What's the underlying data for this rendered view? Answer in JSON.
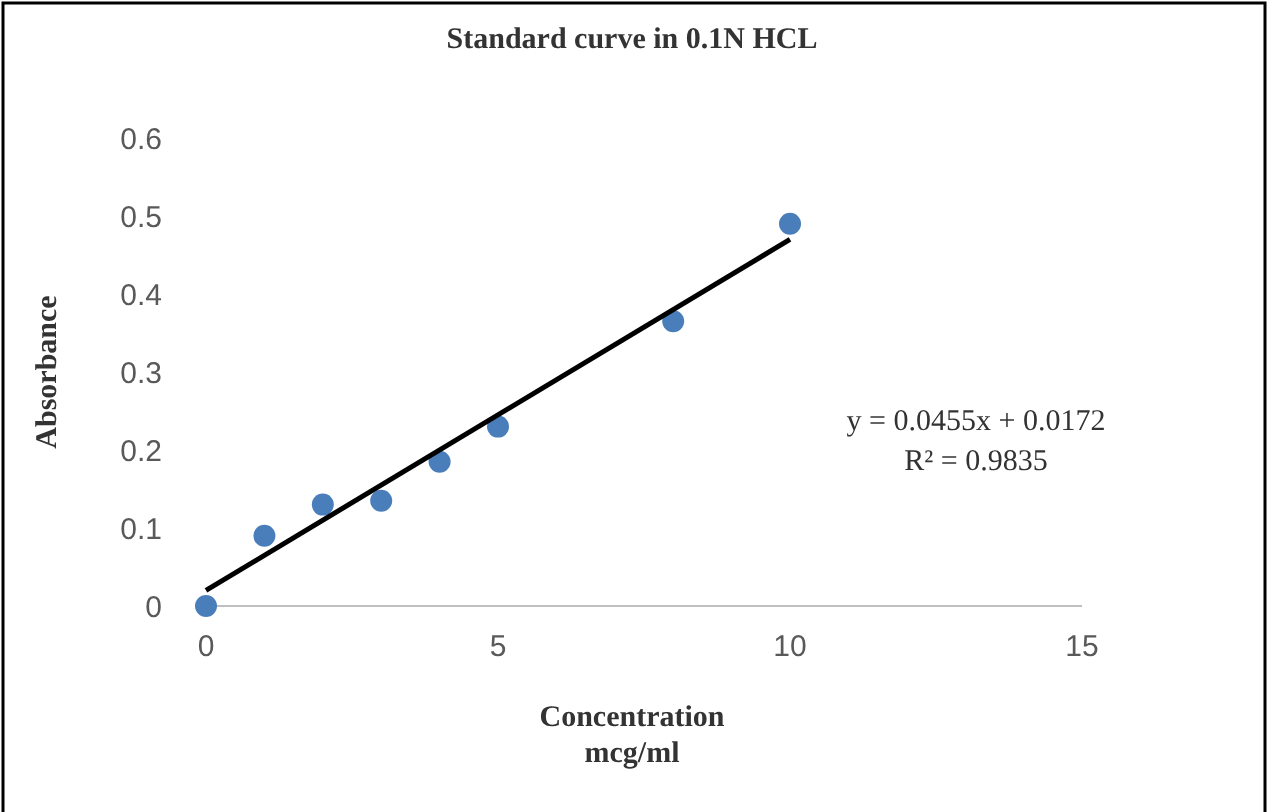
{
  "chart_data": {
    "type": "scatter",
    "title": "Standard curve in 0.1N HCL",
    "xlabel": "Concentration\nmcg/ml",
    "ylabel": "Absorbance",
    "xlim": [
      0,
      15
    ],
    "xticks": [
      0,
      5,
      10,
      15
    ],
    "ylim": [
      0,
      0.6
    ],
    "yticks": [
      0,
      0.1,
      0.2,
      0.3,
      0.4,
      0.5,
      0.6
    ],
    "grid": false,
    "series": [
      {
        "marker": "circle",
        "color": "#4a7ebb",
        "x": [
          0,
          1,
          2,
          3,
          4,
          5,
          8,
          10
        ],
        "values": [
          0,
          0.09,
          0.13,
          0.135,
          0.185,
          0.23,
          0.365,
          0.49
        ]
      },
      {
        "type": "line",
        "color": "#000000",
        "line_style": "solid",
        "x": [
          0,
          10
        ],
        "values": [
          0.02,
          0.47
        ]
      }
    ],
    "annotations": [
      "y = 0.0455x + 0.0172",
      "R² = 0.9835"
    ]
  }
}
